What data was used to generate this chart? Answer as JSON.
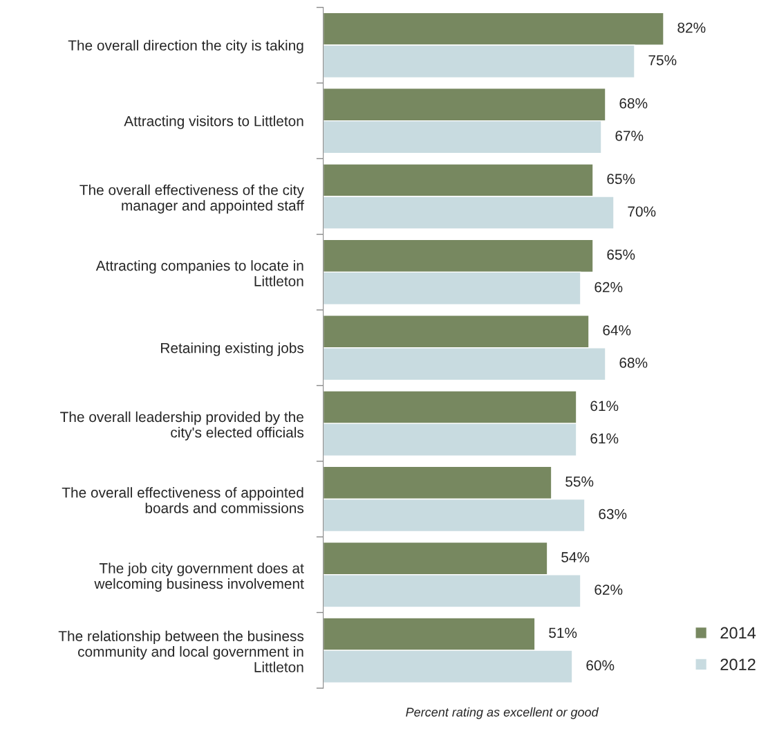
{
  "chart_data": {
    "type": "bar",
    "orientation": "horizontal",
    "xlabel": "Percent rating as excellent or good",
    "categories": [
      "The overall direction the city is taking",
      "Attracting visitors to Littleton",
      "The overall effectiveness of the city\nmanager and appointed staff",
      "Attracting companies to locate in\nLittleton",
      "Retaining existing jobs",
      "The overall leadership provided by the\ncity's elected officials",
      "The overall effectiveness of appointed\nboards and commissions",
      "The job city government does at\nwelcoming business involvement",
      "The relationship between the business\ncommunity and local government in\nLittleton"
    ],
    "series": [
      {
        "name": "2014",
        "color": "#778860",
        "values": [
          82,
          68,
          65,
          65,
          64,
          61,
          55,
          54,
          51
        ],
        "value_labels": [
          "82%",
          "68%",
          "65%",
          "65%",
          "64%",
          "61%",
          "55%",
          "54%",
          "51%"
        ]
      },
      {
        "name": "2012",
        "color": "#c8dbe0",
        "values": [
          75,
          67,
          70,
          62,
          68,
          61,
          63,
          62,
          60
        ],
        "value_labels": [
          "75%",
          "67%",
          "70%",
          "62%",
          "68%",
          "61%",
          "63%",
          "62%",
          "60%"
        ]
      }
    ],
    "legend": "bottom right",
    "grid": false
  }
}
